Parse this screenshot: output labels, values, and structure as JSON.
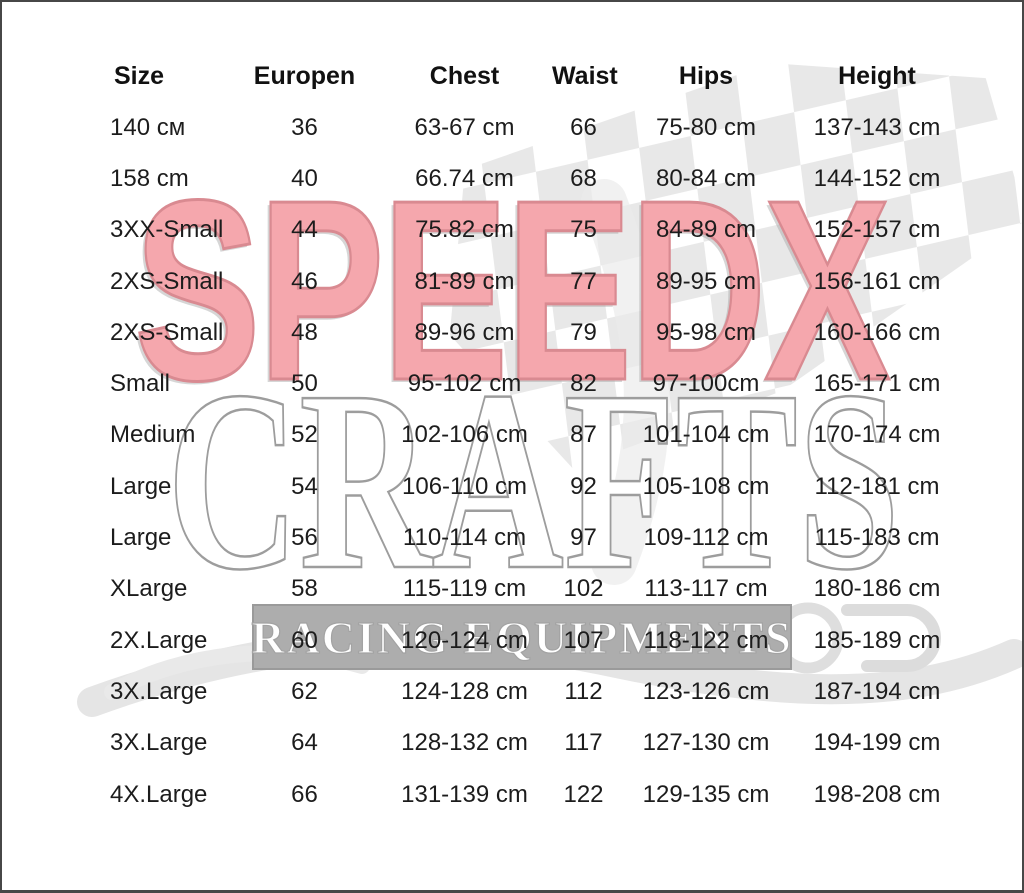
{
  "page": {
    "background": "#ffffff",
    "border_color": "#474747"
  },
  "watermark": {
    "brand_word_1": "SPEEDX",
    "brand_word_2": "CRAFTS",
    "banner_text": "RACING EQUIPMENTS",
    "colors": {
      "speedx_fill": "#f5a7ad",
      "speedx_outline": "#d98a91",
      "crafts_fill": "#ffffff",
      "crafts_outline": "#9d9d9d",
      "banner_background": "#adadad",
      "banner_letters": "#ffffff",
      "graphics_gray": "#e4e4e4"
    },
    "graphics": [
      "checkered-flag",
      "go-kart-swirls"
    ]
  },
  "table": {
    "headers": [
      "Size",
      "Europen",
      "Chest",
      "Waist",
      "Hips",
      "Height"
    ],
    "rows": [
      [
        "140 см",
        "36",
        "63-67 cm",
        "66",
        "75-80 cm",
        "137-143 cm"
      ],
      [
        "158 cm",
        "40",
        "66.74 cm",
        "68",
        "80-84 cm",
        "144-152 cm"
      ],
      [
        "3XX-Small",
        "44",
        "75.82 cm",
        "75",
        "84-89 cm",
        "152-157 cm"
      ],
      [
        "2XS-Small",
        "46",
        "81-89 cm",
        "77",
        "89-95 cm",
        "156-161 cm"
      ],
      [
        "2XS-Small",
        "48",
        "89-96 cm",
        "79",
        "95-98 cm",
        "160-166 cm"
      ],
      [
        "Small",
        "50",
        "95-102 cm",
        "82",
        "97-100cm",
        "165-171 cm"
      ],
      [
        "Medium",
        "52",
        "102-106 cm",
        "87",
        "101-104 cm",
        "170-174 cm"
      ],
      [
        "Large",
        "54",
        "106-110 cm",
        "92",
        "105-108 cm",
        "112-181 cm"
      ],
      [
        "Large",
        "56",
        "110-114 cm",
        "97",
        "109-112 cm",
        "115-183 cm"
      ],
      [
        "XLarge",
        "58",
        "115-119 cm",
        "102",
        "113-117 cm",
        "180-186 cm"
      ],
      [
        "2X.Large",
        "60",
        "120-124 cm",
        "107",
        "118-122 cm",
        "185-189 cm"
      ],
      [
        "3X.Large",
        "62",
        "124-128 cm",
        "112",
        "123-126 cm",
        "187-194 cm"
      ],
      [
        "3X.Large",
        "64",
        "128-132 cm",
        "117",
        "127-130 cm",
        "194-199 cm"
      ],
      [
        "4X.Large",
        "66",
        "131-139 cm",
        "122",
        "129-135 cm",
        "198-208 cm"
      ]
    ]
  }
}
